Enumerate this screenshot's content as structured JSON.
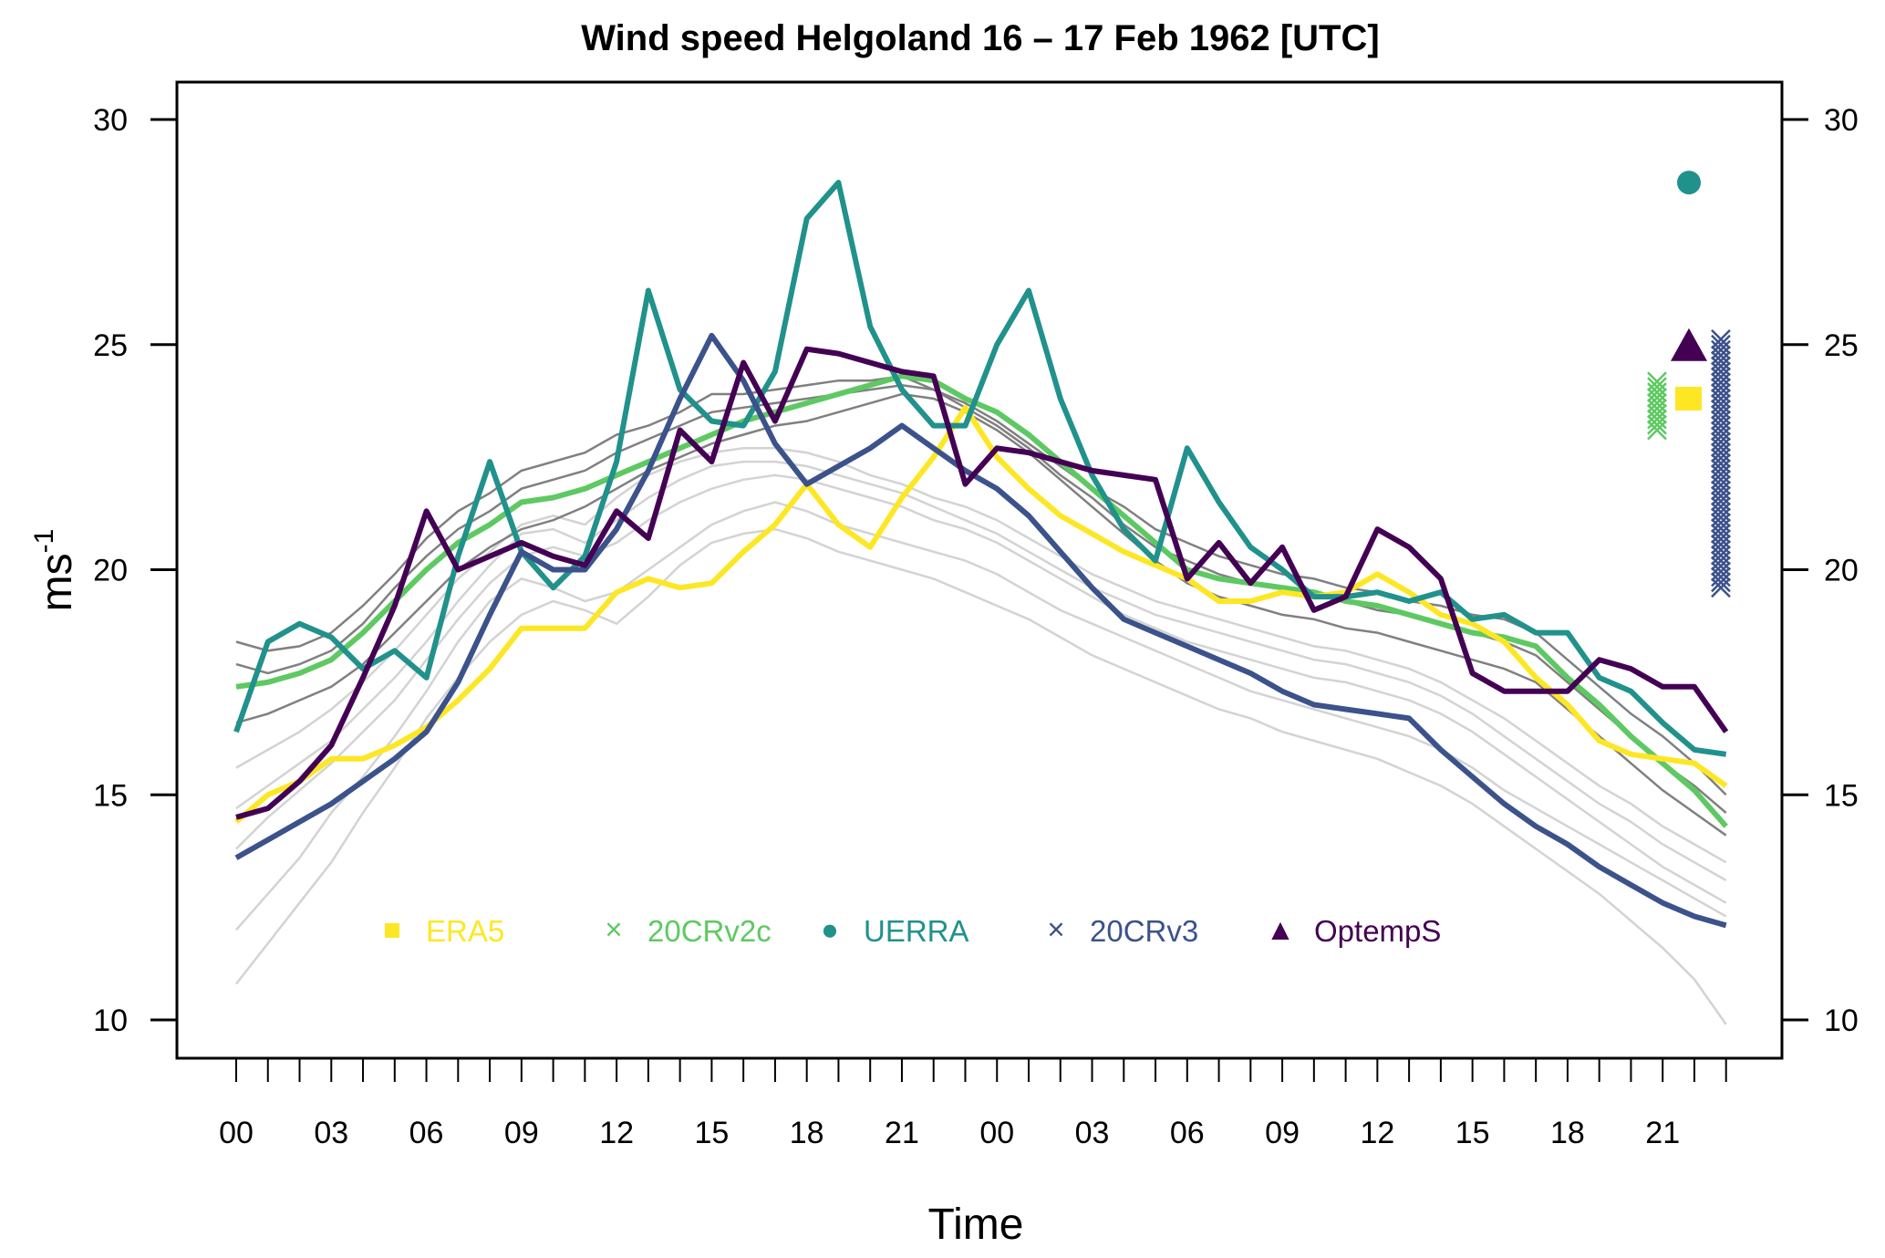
{
  "chart_data": {
    "type": "line",
    "title": "Wind speed Helgoland 16 – 17 Feb 1962 [UTC]",
    "xlabel": "Time",
    "ylabel": "ms",
    "ylabel_superscript": "-1",
    "ylim": [
      10,
      30
    ],
    "yticks": [
      10,
      15,
      20,
      25,
      30
    ],
    "ytick_labels": [
      "10",
      "15",
      "20",
      "25",
      "30"
    ],
    "x_hours": 48,
    "xtick_labels": [
      "00",
      "03",
      "06",
      "09",
      "12",
      "15",
      "18",
      "21",
      "00",
      "03",
      "06",
      "09",
      "12",
      "15",
      "18",
      "21"
    ],
    "grid": false,
    "legend_position": "bottom-center",
    "series": [
      {
        "name": "ERA5",
        "color": "#FDE725",
        "marker": "square",
        "values": [
          14.4,
          15.0,
          15.3,
          15.8,
          15.8,
          16.1,
          16.5,
          17.1,
          17.8,
          18.7,
          18.7,
          18.7,
          19.5,
          19.8,
          19.6,
          19.7,
          20.4,
          21.0,
          21.9,
          21.0,
          20.5,
          21.6,
          22.5,
          23.6,
          22.5,
          21.8,
          21.2,
          20.8,
          20.4,
          20.1,
          19.8,
          19.3,
          19.3,
          19.5,
          19.4,
          19.5,
          19.9,
          19.5,
          19.0,
          18.8,
          18.4,
          17.6,
          17.0,
          16.2,
          15.9,
          15.8,
          15.7,
          15.2
        ]
      },
      {
        "name": "20CRv2c",
        "color": "#5EC962",
        "marker": "cross",
        "values": [
          17.4,
          17.5,
          17.7,
          18.0,
          18.6,
          19.3,
          20.0,
          20.6,
          21.0,
          21.5,
          21.6,
          21.8,
          22.1,
          22.4,
          22.7,
          23.0,
          23.3,
          23.5,
          23.7,
          23.9,
          24.1,
          24.3,
          24.2,
          23.8,
          23.5,
          23.0,
          22.4,
          21.8,
          21.2,
          20.6,
          20.0,
          19.8,
          19.7,
          19.6,
          19.5,
          19.3,
          19.2,
          19.0,
          18.8,
          18.6,
          18.5,
          18.3,
          17.6,
          17.0,
          16.3,
          15.7,
          15.1,
          14.3
        ]
      },
      {
        "name": "UERRA",
        "color": "#21918C",
        "marker": "circle",
        "values": [
          16.4,
          18.4,
          18.8,
          18.5,
          17.8,
          18.2,
          17.6,
          20.3,
          22.4,
          20.4,
          19.6,
          20.3,
          22.4,
          26.2,
          24.0,
          23.3,
          23.2,
          24.4,
          27.8,
          28.6,
          25.4,
          24.0,
          23.2,
          23.2,
          25.0,
          26.2,
          23.8,
          22.1,
          20.9,
          20.2,
          22.7,
          21.5,
          20.5,
          20.0,
          19.4,
          19.4,
          19.5,
          19.3,
          19.5,
          18.9,
          19.0,
          18.6,
          18.6,
          17.6,
          17.3,
          16.6,
          16.0,
          15.9
        ]
      },
      {
        "name": "20CRv3",
        "color": "#3B528B",
        "marker": "cross",
        "values": [
          13.6,
          14.0,
          14.4,
          14.8,
          15.3,
          15.8,
          16.4,
          17.5,
          19.0,
          20.4,
          20.0,
          20.0,
          20.9,
          22.2,
          23.8,
          25.2,
          24.2,
          22.8,
          21.9,
          22.3,
          22.7,
          23.2,
          22.7,
          22.2,
          21.8,
          21.2,
          20.4,
          19.6,
          18.9,
          18.6,
          18.3,
          18.0,
          17.7,
          17.3,
          17.0,
          16.9,
          16.8,
          16.7,
          16.0,
          15.4,
          14.8,
          14.3,
          13.9,
          13.4,
          13.0,
          12.6,
          12.3,
          12.1
        ]
      },
      {
        "name": "OptempS",
        "color": "#440154",
        "marker": "triangle",
        "values": [
          14.5,
          14.7,
          15.3,
          16.1,
          17.6,
          19.2,
          21.3,
          20.0,
          20.3,
          20.6,
          20.3,
          20.1,
          21.3,
          20.7,
          23.1,
          22.4,
          24.6,
          23.3,
          24.9,
          24.8,
          24.6,
          24.4,
          24.3,
          21.9,
          22.7,
          22.6,
          22.4,
          22.2,
          22.1,
          22.0,
          19.8,
          20.6,
          19.7,
          20.5,
          19.1,
          19.4,
          20.9,
          20.5,
          19.8,
          17.7,
          17.3,
          17.3,
          17.3,
          18.0,
          17.8,
          17.4,
          17.4,
          16.4
        ]
      }
    ],
    "ensemble_v2c_members": [
      [
        18.4,
        18.2,
        18.3,
        18.6,
        19.2,
        19.9,
        20.7,
        21.3,
        21.7,
        22.2,
        22.4,
        22.6,
        23.0,
        23.2,
        23.5,
        23.9,
        23.9,
        24.0,
        24.1,
        24.2,
        24.2,
        24.3,
        24.0,
        23.7,
        23.3,
        22.8,
        22.3,
        21.8,
        21.4,
        20.9,
        20.6,
        20.3,
        20.1,
        19.9,
        19.8,
        19.6,
        19.5,
        19.3,
        19.2,
        19.0,
        18.9,
        18.6,
        18.0,
        17.4,
        16.8,
        16.3,
        15.7,
        15.0
      ],
      [
        16.6,
        16.8,
        17.1,
        17.4,
        17.9,
        18.6,
        19.3,
        20.0,
        20.5,
        20.9,
        21.1,
        21.4,
        21.8,
        22.2,
        22.5,
        22.8,
        23.0,
        23.2,
        23.3,
        23.5,
        23.7,
        23.9,
        23.8,
        23.5,
        23.1,
        22.6,
        22.0,
        21.4,
        20.8,
        20.2,
        19.7,
        19.4,
        19.2,
        19.0,
        18.9,
        18.7,
        18.6,
        18.4,
        18.2,
        18.0,
        17.8,
        17.5,
        16.9,
        16.3,
        15.7,
        15.1,
        14.6,
        14.1
      ],
      [
        17.9,
        17.7,
        17.9,
        18.2,
        18.8,
        19.6,
        20.3,
        20.9,
        21.3,
        21.8,
        22.0,
        22.2,
        22.6,
        22.9,
        23.2,
        23.5,
        23.6,
        23.7,
        23.8,
        23.9,
        24.0,
        24.1,
        24.0,
        23.6,
        23.2,
        22.7,
        22.1,
        21.6,
        21.0,
        20.5,
        20.2,
        19.9,
        19.7,
        19.6,
        19.5,
        19.3,
        19.1,
        19.0,
        18.8,
        18.6,
        18.4,
        18.1,
        17.5,
        16.9,
        16.3,
        15.7,
        15.2,
        14.6
      ]
    ],
    "ensemble_v3_members": [
      [
        12.0,
        12.8,
        13.6,
        14.6,
        15.4,
        16.3,
        17.3,
        18.4,
        19.3,
        19.8,
        19.6,
        19.3,
        19.5,
        20.0,
        20.5,
        21.0,
        21.3,
        21.5,
        21.3,
        21.0,
        20.8,
        20.6,
        20.4,
        20.2,
        19.9,
        19.5,
        19.1,
        18.8,
        18.5,
        18.2,
        17.9,
        17.6,
        17.3,
        17.1,
        16.9,
        16.7,
        16.5,
        16.3,
        16.0,
        15.6,
        15.1,
        14.7,
        14.3,
        13.9,
        13.5,
        13.1,
        12.7,
        12.3
      ],
      [
        15.6,
        16.0,
        16.4,
        16.9,
        17.5,
        18.2,
        19.0,
        19.8,
        20.4,
        21.0,
        21.2,
        21.0,
        21.6,
        22.1,
        22.4,
        22.6,
        22.7,
        22.7,
        22.6,
        22.4,
        22.1,
        21.9,
        21.6,
        21.4,
        21.1,
        20.7,
        20.3,
        19.9,
        19.6,
        19.3,
        19.1,
        18.9,
        18.7,
        18.5,
        18.3,
        18.2,
        18.0,
        17.8,
        17.5,
        17.1,
        16.7,
        16.2,
        15.7,
        15.2,
        14.8,
        14.3,
        13.9,
        13.5
      ],
      [
        10.8,
        11.7,
        12.6,
        13.5,
        14.6,
        15.6,
        16.7,
        17.6,
        18.4,
        19.0,
        19.3,
        19.1,
        18.8,
        19.4,
        20.1,
        20.6,
        20.8,
        20.9,
        20.7,
        20.4,
        20.2,
        20.0,
        19.8,
        19.5,
        19.2,
        18.9,
        18.5,
        18.1,
        17.8,
        17.5,
        17.2,
        16.9,
        16.7,
        16.4,
        16.2,
        16.0,
        15.8,
        15.5,
        15.2,
        14.8,
        14.3,
        13.8,
        13.3,
        12.8,
        12.2,
        11.6,
        10.9,
        9.9
      ],
      [
        13.8,
        14.5,
        15.1,
        15.7,
        16.4,
        17.1,
        18.0,
        18.9,
        19.7,
        20.3,
        20.5,
        20.3,
        20.6,
        21.1,
        21.5,
        21.8,
        22.0,
        22.1,
        22.0,
        21.8,
        21.6,
        21.4,
        21.1,
        20.9,
        20.6,
        20.2,
        19.8,
        19.4,
        19.0,
        18.7,
        18.4,
        18.2,
        18.0,
        17.8,
        17.6,
        17.5,
        17.3,
        17.1,
        16.8,
        16.4,
        15.9,
        15.4,
        14.9,
        14.4,
        13.9,
        13.4,
        13.0,
        12.6
      ],
      [
        14.7,
        15.2,
        15.7,
        16.2,
        16.9,
        17.6,
        18.4,
        19.3,
        20.1,
        20.8,
        20.9,
        20.6,
        21.1,
        21.6,
        22.0,
        22.3,
        22.4,
        22.4,
        22.3,
        22.1,
        21.9,
        21.7,
        21.4,
        21.1,
        20.8,
        20.4,
        20.0,
        19.6,
        19.3,
        19.0,
        18.8,
        18.6,
        18.4,
        18.2,
        18.0,
        17.9,
        17.7,
        17.5,
        17.2,
        16.8,
        16.3,
        15.8,
        15.3,
        14.8,
        14.4,
        13.9,
        13.5,
        13.1
      ]
    ],
    "end_markers": [
      {
        "name": "UERRA",
        "marker": "circle",
        "values": [
          28.6
        ]
      },
      {
        "name": "OptempS",
        "marker": "triangle",
        "values": [
          25.0
        ]
      },
      {
        "name": "ERA5",
        "marker": "square",
        "values": [
          23.8
        ]
      },
      {
        "name": "20CRv2c",
        "marker": "cross",
        "range": [
          23.1,
          24.2
        ]
      },
      {
        "name": "20CRv3",
        "marker": "cross",
        "range": [
          19.6,
          25.2
        ]
      }
    ],
    "legend": [
      {
        "label": "ERA5",
        "color": "#FDE725",
        "symbol": "■"
      },
      {
        "label": "20CRv2c",
        "color": "#5EC962",
        "symbol": "×"
      },
      {
        "label": "UERRA",
        "color": "#21918C",
        "symbol": "●"
      },
      {
        "label": "20CRv3",
        "color": "#3B528B",
        "symbol": "×"
      },
      {
        "label": "OptempS",
        "color": "#440154",
        "symbol": "▲"
      }
    ],
    "colors": {
      "ensemble_v2c": "#808080",
      "ensemble_v3": "#D3D3D3",
      "axis": "#000000"
    }
  }
}
